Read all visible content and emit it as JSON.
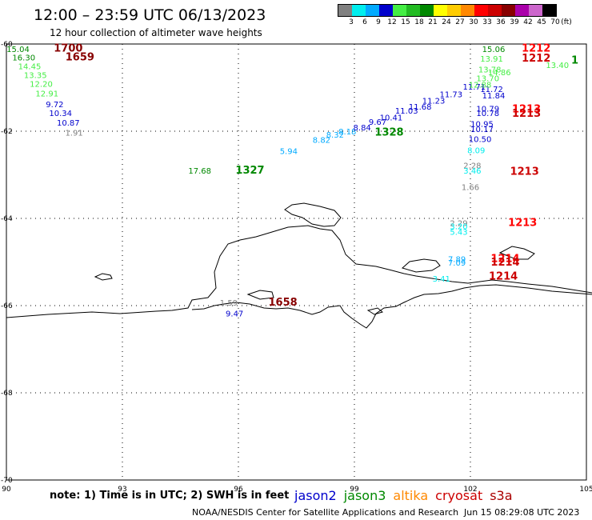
{
  "title": "12:00 – 23:59 UTC 06/13/2023",
  "subtitle": "12 hour collection of altimeter wave heights",
  "note": "note:  1) Time is in UTC;  2) SWH is in feet",
  "credit": "NOAA/NESDIS Center for Satellite Applications and Research",
  "timestamp": "Jun 15 08:29:08 UTC 2023",
  "color_scale": {
    "unit_label": "(ft)",
    "ticks": [
      "3",
      "6",
      "9",
      "12",
      "15",
      "18",
      "21",
      "24",
      "27",
      "30",
      "33",
      "36",
      "39",
      "42",
      "45",
      "70"
    ],
    "colors": [
      "#808080",
      "#00eeee",
      "#00aaff",
      "#0000cc",
      "#44ee44",
      "#22bb22",
      "#008800",
      "#ffff00",
      "#ffcc00",
      "#ff8800",
      "#ff0000",
      "#cc0000",
      "#880000",
      "#aa00aa",
      "#cc66cc",
      "#000000"
    ]
  },
  "satellites": [
    {
      "name": "jason2",
      "color": "#0000cc"
    },
    {
      "name": "jason3",
      "color": "#008800"
    },
    {
      "name": "altika",
      "color": "#ff8800"
    },
    {
      "name": "cryosat",
      "color": "#cc0000"
    },
    {
      "name": "s3a",
      "color": "#aa0000"
    }
  ],
  "map": {
    "lon_range": [
      90,
      105
    ],
    "lat_range": [
      -70,
      -60
    ],
    "lon_ticks": [
      90,
      93,
      96,
      99,
      102,
      105
    ],
    "lat_ticks": [
      -60,
      -62,
      -64,
      -66,
      -68,
      -70
    ],
    "lon_tick_labels": [
      "90",
      "93",
      "96",
      "99",
      "102",
      "105"
    ],
    "lat_tick_labels": [
      "-60",
      "-62",
      "-64",
      "-66",
      "-68",
      "-70"
    ]
  },
  "observations": [
    {
      "lon": 90.3,
      "lat": -60.18,
      "text": "15.04",
      "color": "#008800"
    },
    {
      "lon": 90.45,
      "lat": -60.38,
      "text": "16.30",
      "color": "#008800"
    },
    {
      "lon": 90.6,
      "lat": -60.58,
      "text": "14.45",
      "color": "#44ee44"
    },
    {
      "lon": 90.75,
      "lat": -60.78,
      "text": "13.35",
      "color": "#44ee44"
    },
    {
      "lon": 90.9,
      "lat": -60.98,
      "text": "12.20",
      "color": "#44ee44"
    },
    {
      "lon": 91.05,
      "lat": -61.2,
      "text": "12.91",
      "color": "#44ee44"
    },
    {
      "lon": 91.25,
      "lat": -61.45,
      "text": "9.72",
      "color": "#0000cc"
    },
    {
      "lon": 91.4,
      "lat": -61.65,
      "text": "10.34",
      "color": "#0000cc"
    },
    {
      "lon": 91.6,
      "lat": -61.87,
      "text": "10.87",
      "color": "#0000cc"
    },
    {
      "lon": 91.75,
      "lat": -62.1,
      "text": "1.91",
      "color": "#808080"
    },
    {
      "lon": 95.0,
      "lat": -62.97,
      "text": "17.68",
      "color": "#008800"
    },
    {
      "lon": 97.3,
      "lat": -62.52,
      "text": "5.94",
      "color": "#00aaff"
    },
    {
      "lon": 98.15,
      "lat": -62.27,
      "text": "8.82",
      "color": "#00aaff"
    },
    {
      "lon": 98.5,
      "lat": -62.15,
      "text": "8.32",
      "color": "#00aaff"
    },
    {
      "lon": 98.82,
      "lat": -62.07,
      "text": "8.18",
      "color": "#00aaff"
    },
    {
      "lon": 99.2,
      "lat": -61.98,
      "text": "8.84",
      "color": "#0000cc"
    },
    {
      "lon": 99.6,
      "lat": -61.85,
      "text": "9.67",
      "color": "#0000cc"
    },
    {
      "lon": 99.95,
      "lat": -61.75,
      "text": "10.41",
      "color": "#0000cc"
    },
    {
      "lon": 100.35,
      "lat": -61.6,
      "text": "11.03",
      "color": "#0000cc"
    },
    {
      "lon": 100.7,
      "lat": -61.5,
      "text": "11.68",
      "color": "#0000cc"
    },
    {
      "lon": 101.05,
      "lat": -61.37,
      "text": "11.23",
      "color": "#0000cc"
    },
    {
      "lon": 101.5,
      "lat": -61.22,
      "text": "11.73",
      "color": "#0000cc"
    },
    {
      "lon": 102.1,
      "lat": -61.05,
      "text": "11.71",
      "color": "#0000cc"
    },
    {
      "lon": 102.55,
      "lat": -61.1,
      "text": "11.72",
      "color": "#0000cc"
    },
    {
      "lon": 102.6,
      "lat": -61.25,
      "text": "11.84",
      "color": "#0000cc"
    },
    {
      "lon": 102.6,
      "lat": -60.18,
      "text": "15.06",
      "color": "#008800"
    },
    {
      "lon": 102.55,
      "lat": -60.4,
      "text": "13.91",
      "color": "#44ee44"
    },
    {
      "lon": 102.5,
      "lat": -60.65,
      "text": "13.78",
      "color": "#44ee44"
    },
    {
      "lon": 102.75,
      "lat": -60.72,
      "text": "14.86",
      "color": "#44ee44"
    },
    {
      "lon": 102.45,
      "lat": -60.85,
      "text": "13.70",
      "color": "#44ee44"
    },
    {
      "lon": 102.25,
      "lat": -61.0,
      "text": "12.88",
      "color": "#44ee44"
    },
    {
      "lon": 104.25,
      "lat": -60.55,
      "text": "13.40",
      "color": "#44ee44"
    },
    {
      "lon": 102.45,
      "lat": -61.55,
      "text": "10.79",
      "color": "#0000cc"
    },
    {
      "lon": 102.45,
      "lat": -61.65,
      "text": "10.78",
      "color": "#0000cc"
    },
    {
      "lon": 102.3,
      "lat": -61.9,
      "text": "10.95",
      "color": "#0000cc"
    },
    {
      "lon": 102.3,
      "lat": -62.02,
      "text": "10.17",
      "color": "#0000cc"
    },
    {
      "lon": 102.25,
      "lat": -62.25,
      "text": "10.50",
      "color": "#0000cc"
    },
    {
      "lon": 102.15,
      "lat": -62.5,
      "text": "8.09",
      "color": "#00eeee"
    },
    {
      "lon": 102.05,
      "lat": -62.85,
      "text": "2.28",
      "color": "#808080"
    },
    {
      "lon": 102.05,
      "lat": -62.97,
      "text": "3.46",
      "color": "#00eeee"
    },
    {
      "lon": 102.0,
      "lat": -63.35,
      "text": "1.66",
      "color": "#808080"
    },
    {
      "lon": 101.7,
      "lat": -64.17,
      "text": "2.29",
      "color": "#808080"
    },
    {
      "lon": 101.7,
      "lat": -64.25,
      "text": "3.20",
      "color": "#00eeee"
    },
    {
      "lon": 101.7,
      "lat": -64.38,
      "text": "5.43",
      "color": "#00eeee"
    },
    {
      "lon": 101.65,
      "lat": -65.0,
      "text": "7.89",
      "color": "#00aaff"
    },
    {
      "lon": 101.65,
      "lat": -65.08,
      "text": "7.09",
      "color": "#00aaff"
    },
    {
      "lon": 101.25,
      "lat": -65.45,
      "text": "3.41",
      "color": "#00eeee"
    },
    {
      "lon": 95.75,
      "lat": -66.0,
      "text": "1.59",
      "color": "#808080"
    },
    {
      "lon": 95.9,
      "lat": -66.25,
      "text": "9.47",
      "color": "#0000cc"
    }
  ],
  "pass_times": [
    {
      "lon": 91.6,
      "lat": -60.17,
      "text": "1700",
      "color": "#880000"
    },
    {
      "lon": 91.9,
      "lat": -60.38,
      "text": "1659",
      "color": "#880000"
    },
    {
      "lon": 96.3,
      "lat": -62.97,
      "text": "1327",
      "color": "#008800"
    },
    {
      "lon": 99.9,
      "lat": -62.1,
      "text": "1328",
      "color": "#008800"
    },
    {
      "lon": 103.7,
      "lat": -60.17,
      "text": "1212",
      "color": "#ff0000"
    },
    {
      "lon": 103.7,
      "lat": -60.4,
      "text": "1212",
      "color": "#cc0000"
    },
    {
      "lon": 104.7,
      "lat": -60.45,
      "text": "1",
      "color": "#008800"
    },
    {
      "lon": 103.45,
      "lat": -61.57,
      "text": "1213",
      "color": "#ff0000"
    },
    {
      "lon": 103.45,
      "lat": -61.67,
      "text": "1213",
      "color": "#cc0000"
    },
    {
      "lon": 103.4,
      "lat": -63.0,
      "text": "1213",
      "color": "#cc0000"
    },
    {
      "lon": 103.35,
      "lat": -64.17,
      "text": "1213",
      "color": "#ff0000"
    },
    {
      "lon": 102.9,
      "lat": -65.0,
      "text": "1214",
      "color": "#ff0000"
    },
    {
      "lon": 102.9,
      "lat": -65.08,
      "text": "1214",
      "color": "#cc0000"
    },
    {
      "lon": 102.85,
      "lat": -65.4,
      "text": "1214",
      "color": "#cc0000"
    },
    {
      "lon": 97.15,
      "lat": -66.0,
      "text": "1658",
      "color": "#880000"
    }
  ]
}
